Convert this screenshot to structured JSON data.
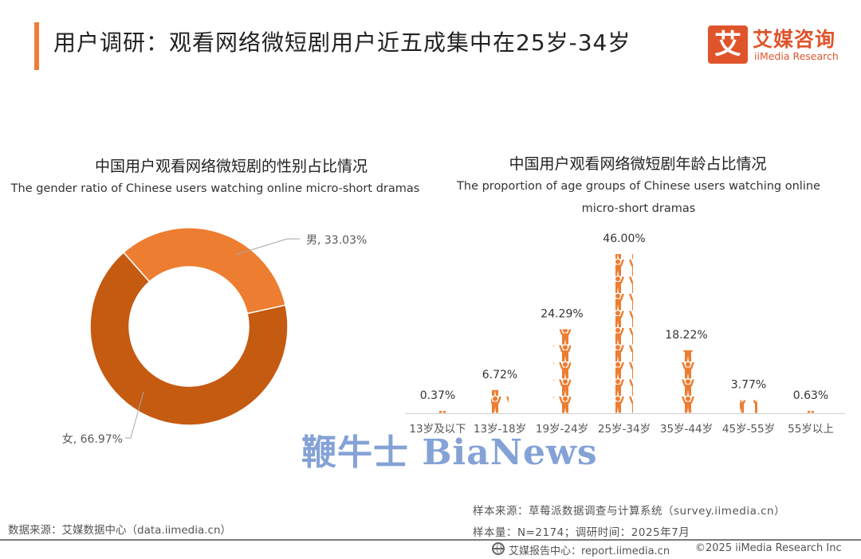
{
  "header": {
    "title": "用户调研：观看网络微短剧用户近五成集中在25岁-34岁",
    "logo_mark": "艾",
    "logo_cn": "艾媒咨询",
    "logo_en": "iiMedia Research"
  },
  "colors": {
    "accent": "#ef7d3a",
    "female": "#c55a11",
    "male": "#ed7d31",
    "bar": "#ed7d31"
  },
  "gender_chart": {
    "title_cn": "中国用户观看网络微短剧的性别占比情况",
    "title_en": "The gender ratio of Chinese users watching online micro-short dramas"
  },
  "age_chart": {
    "title_cn": "中国用户观看网络微短剧年龄占比情况",
    "title_en": "The proportion of age groups of Chinese users watching online micro-short dramas"
  },
  "chart_data": [
    {
      "type": "pie",
      "style": "donut",
      "categories": [
        "男",
        "女"
      ],
      "values": [
        33.03,
        66.97
      ],
      "labels": [
        "男, 33.03%",
        "女, 66.97%"
      ],
      "unit": "%"
    },
    {
      "type": "bar",
      "style": "pictograph",
      "categories": [
        "13岁及以下",
        "13岁-18岁",
        "19岁-24岁",
        "25岁-34岁",
        "35岁-44岁",
        "45岁-55岁",
        "55岁以上"
      ],
      "values": [
        0.37,
        6.72,
        24.29,
        46.0,
        18.22,
        3.77,
        0.63
      ],
      "labels": [
        "0.37%",
        "6.72%",
        "24.29%",
        "46.00%",
        "18.22%",
        "3.77%",
        "0.63%"
      ],
      "unit": "%"
    }
  ],
  "watermark": "鞭牛士 BiaNews",
  "footer": {
    "data_source": "数据来源：艾媒数据中心（data.iimedia.cn）",
    "sample_source": "样本来源：草莓派数据调查与计算系统（survey.iimedia.cn）",
    "sample_size": "样本量：N=2174；调研时间：2025年7月",
    "report_center": "艾媒报告中心：report.iimedia.cn",
    "copyright": "©2025  iiMedia Research  Inc"
  }
}
